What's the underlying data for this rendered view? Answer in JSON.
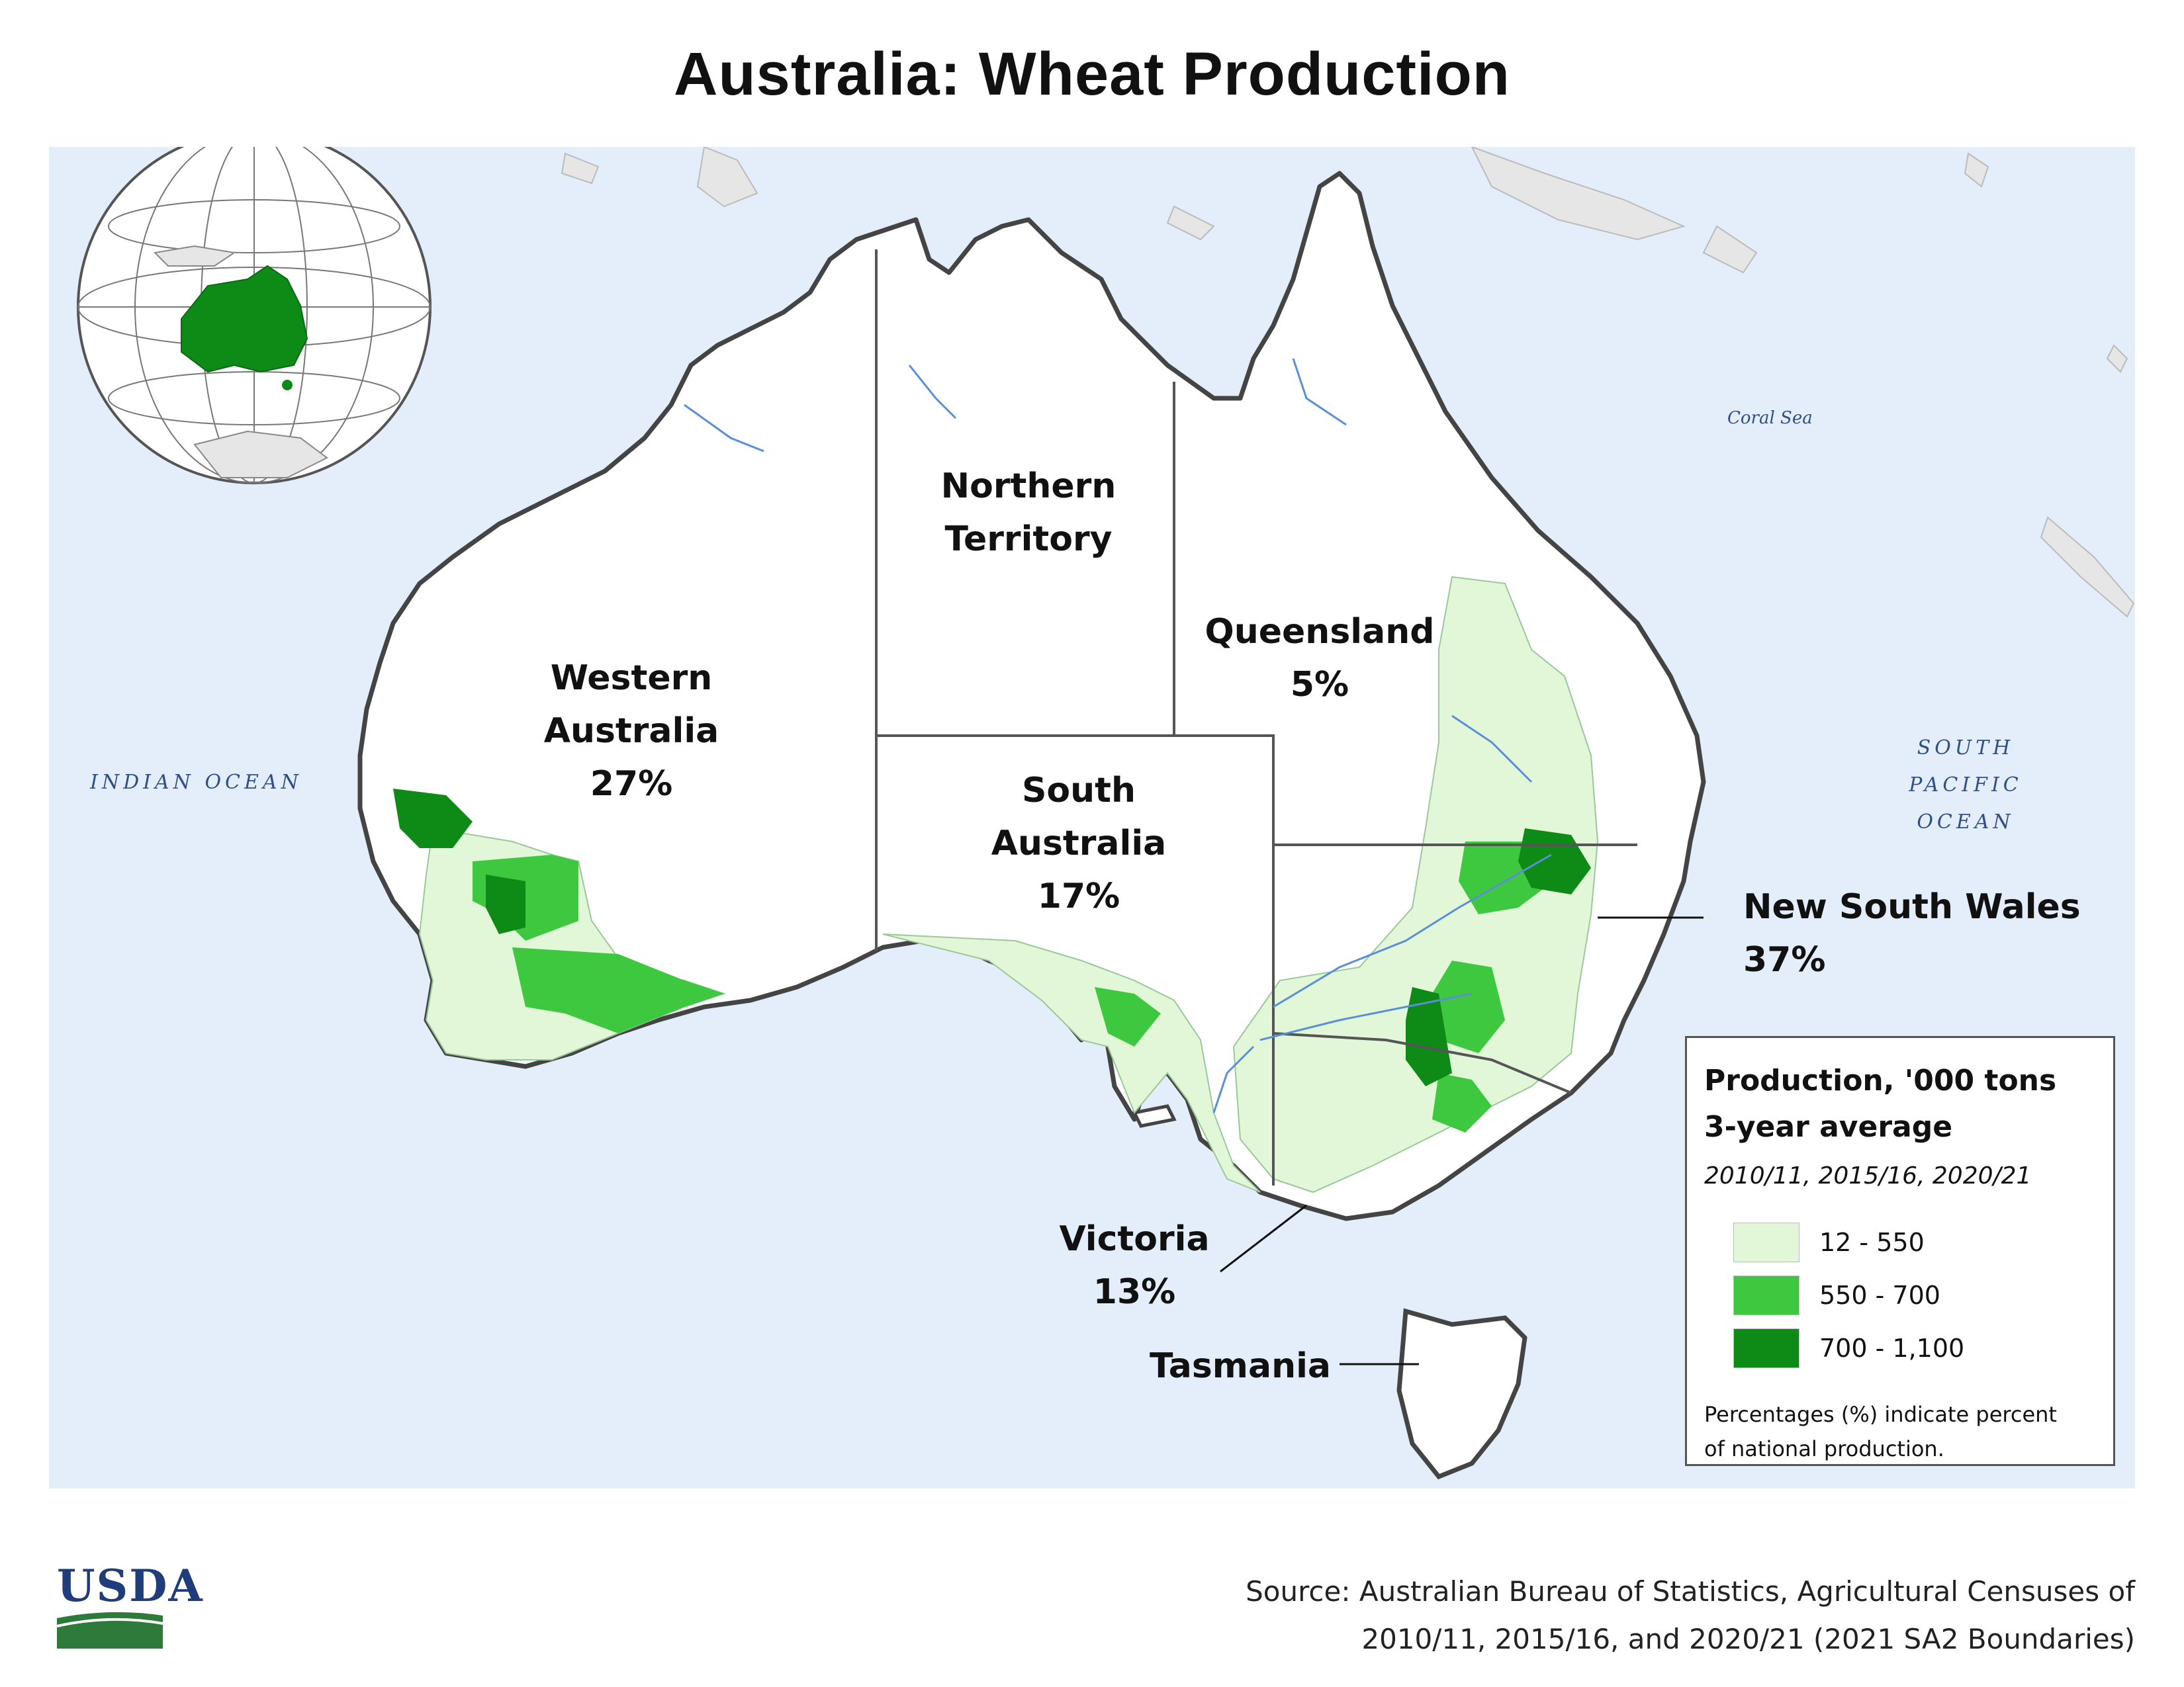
{
  "title": "Australia: Wheat Production",
  "oceans": {
    "indian": "INDIAN OCEAN",
    "coral": "Coral Sea",
    "south_pacific": [
      "SOUTH",
      "PACIFIC",
      "OCEAN"
    ]
  },
  "states": {
    "wa": {
      "name": [
        "Western",
        "Australia"
      ],
      "pct": "27%"
    },
    "nt": {
      "name": [
        "Northern",
        "Territory"
      ]
    },
    "qld": {
      "name": [
        "Queensland"
      ],
      "pct": "5%"
    },
    "sa": {
      "name": [
        "South",
        "Australia"
      ],
      "pct": "17%"
    },
    "nsw": {
      "name": [
        "New South Wales"
      ],
      "pct": "37%"
    },
    "vic": {
      "name": [
        "Victoria"
      ],
      "pct": "13%"
    },
    "tas": {
      "name": [
        "Tasmania"
      ]
    }
  },
  "legend": {
    "title_line1": "Production, '000 tons",
    "title_line2": "3-year average",
    "subtitle": "2010/11, 2015/16, 2020/21",
    "classes": [
      {
        "label": "12 - 550",
        "color": "#e1f7d8"
      },
      {
        "label": "550 - 700",
        "color": "#3ec840"
      },
      {
        "label": "700 - 1,100",
        "color": "#0e8a17"
      }
    ],
    "note_line1": "Percentages (%) indicate percent",
    "note_line2": "of national production."
  },
  "source": {
    "line1": "Source: Australian Bureau of Statistics, Agricultural Censuses of",
    "line2": "2010/11, 2015/16, and 2020/21 (2021 SA2 Boundaries)"
  },
  "logo_text": "USDA",
  "colors": {
    "ocean": "#e4eefb",
    "land_other": "#e6e6e6",
    "australia_land": "#ffffff",
    "coast": "#444444",
    "globe_australia": "#0e8a17",
    "usda_blue": "#1f3d7a",
    "usda_green": "#2d7a3a"
  }
}
